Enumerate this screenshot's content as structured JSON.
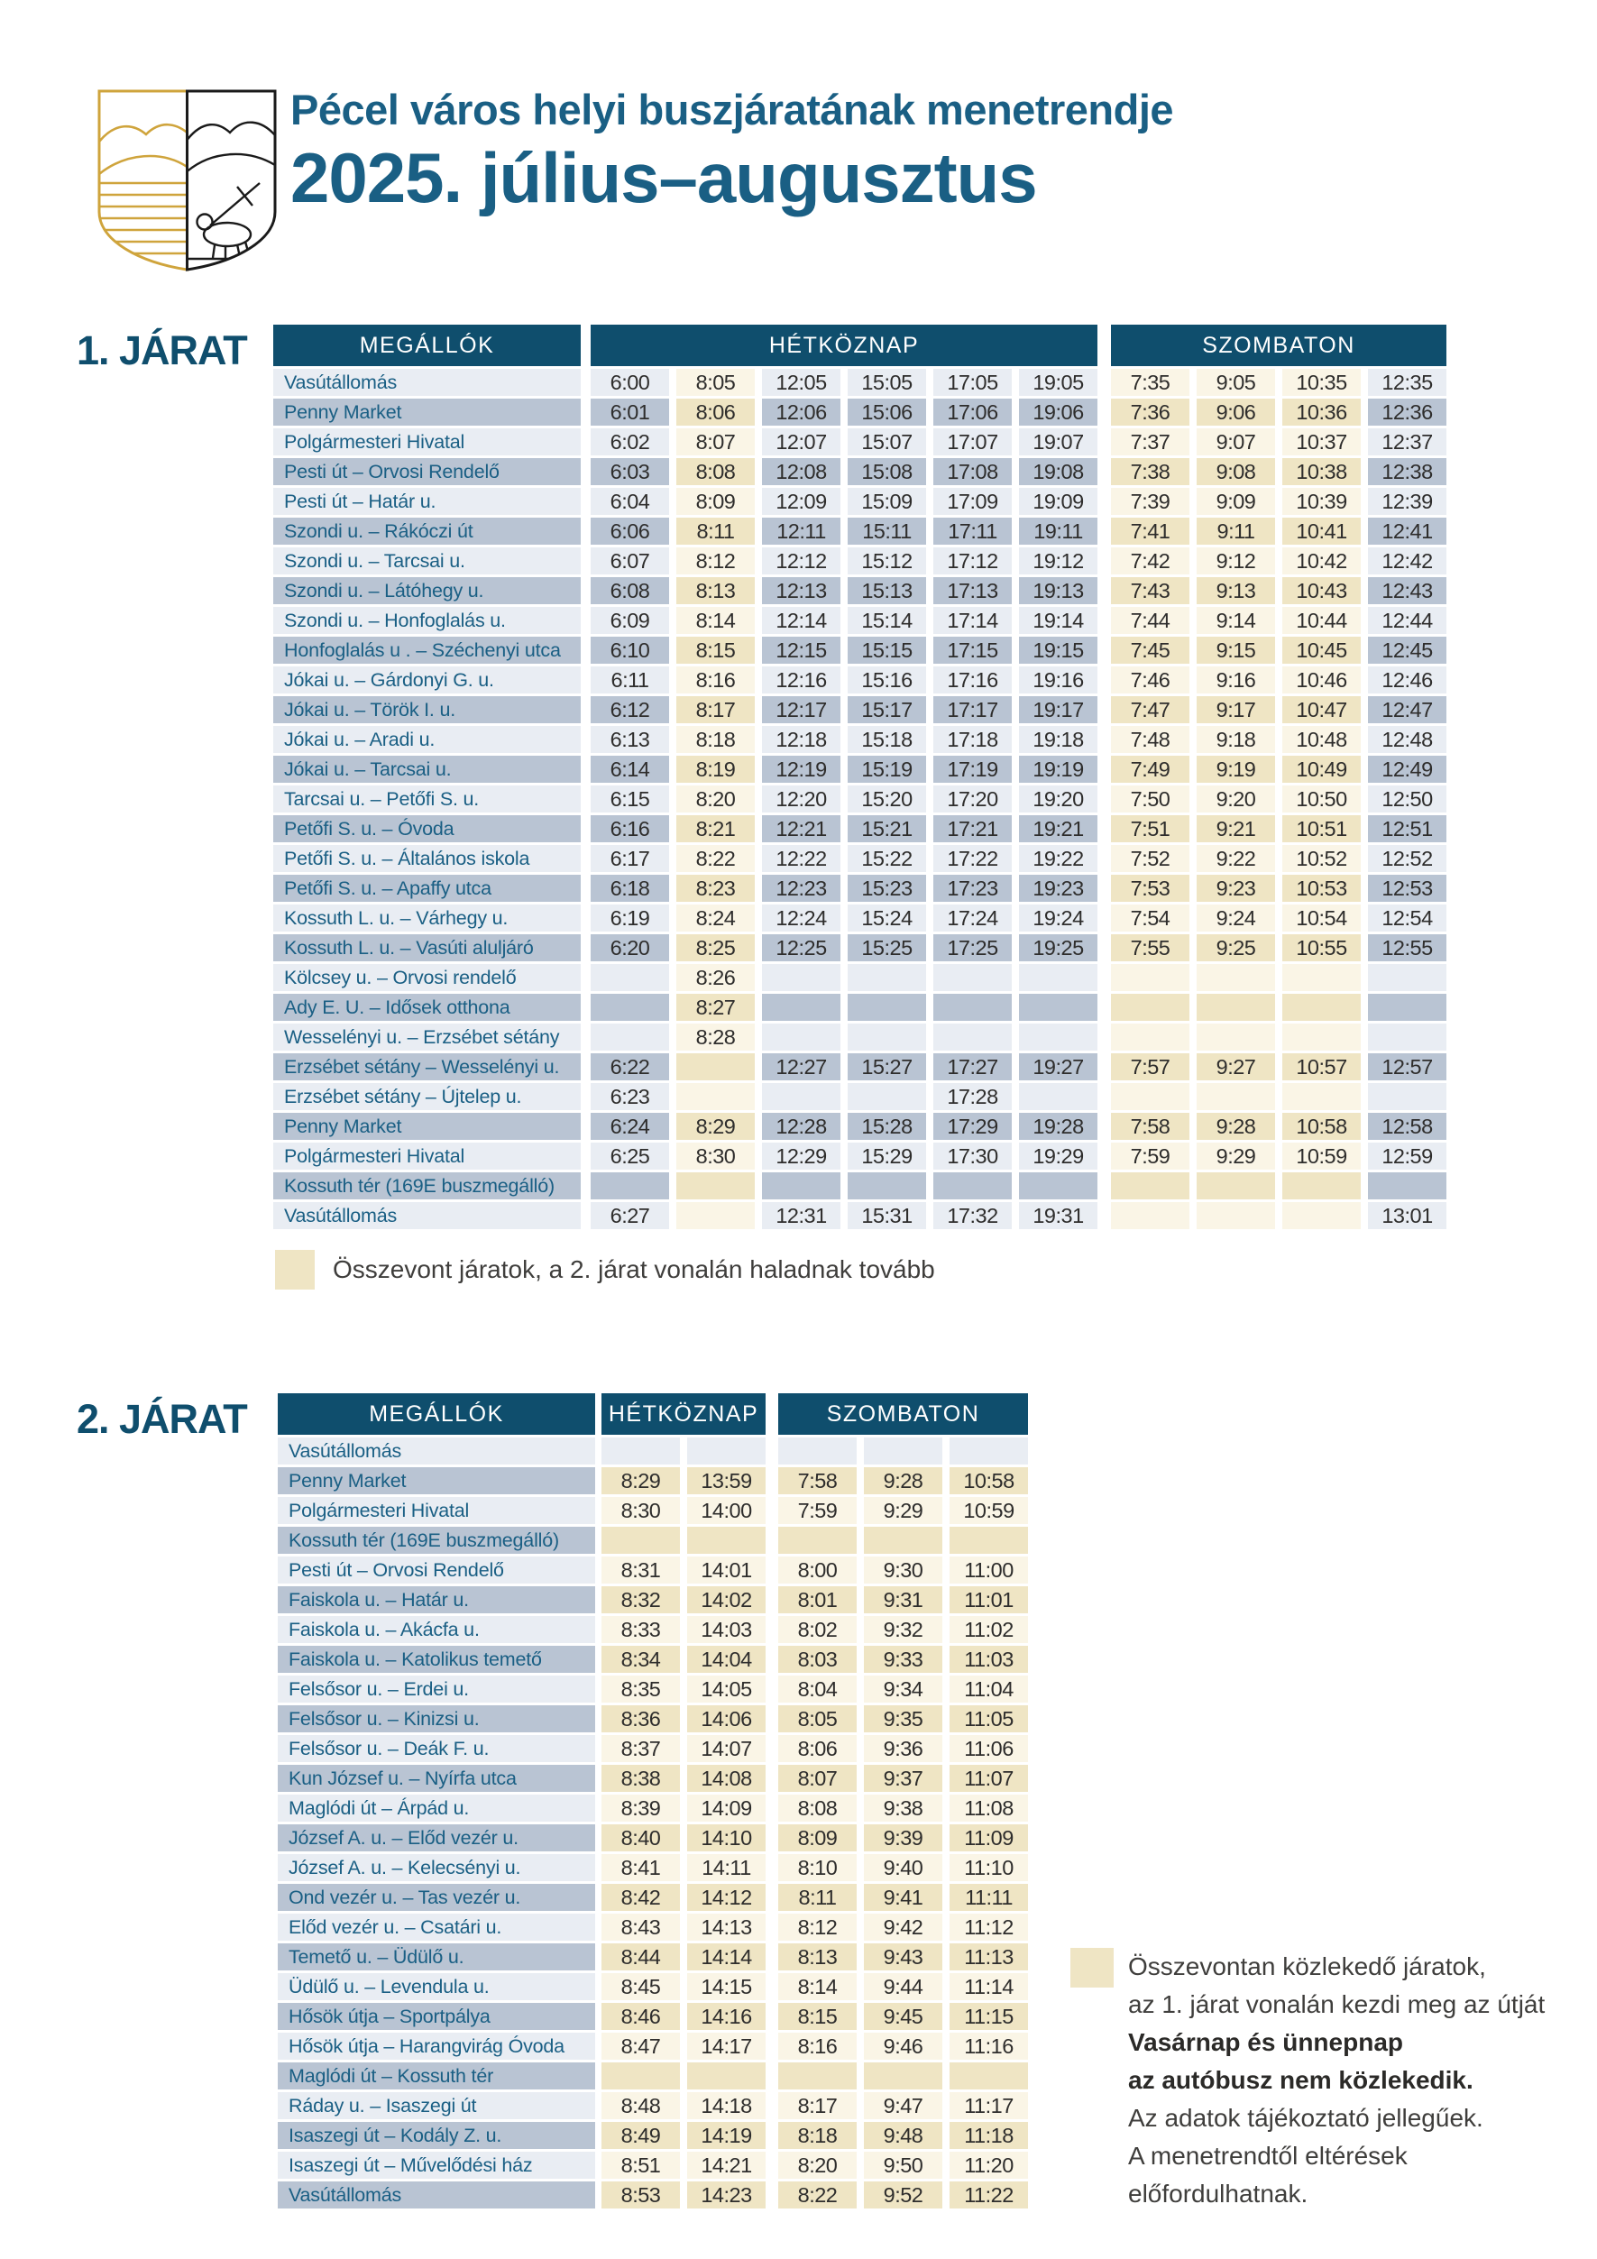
{
  "header": {
    "title_line1": "Pécel város helyi buszjáratának menetrendje",
    "title_line2": "2025. július–augusztus",
    "logo": "pecel-coat-of-arms"
  },
  "colors": {
    "header_blue": "#0f4e6d",
    "stop_text_blue": "#1a5f84",
    "row_light": "#e9edf3",
    "row_dark": "#b9c4d3",
    "combined_highlight_light": "#faf5e6",
    "combined_highlight_dark": "#efe5c4",
    "logo_gold": "#cfa43c",
    "logo_black": "#1a1a1a"
  },
  "table1": {
    "label": "1. JÁRAT",
    "headers": {
      "stops": "MEGÁLLÓK",
      "weekday": "HÉTKÖZNAP",
      "saturday": "SZOMBATON"
    },
    "combined_weekday_columns": [
      1
    ],
    "combined_saturday_columns": [
      0,
      1,
      2
    ],
    "non_combined_rows": [],
    "rows": [
      {
        "stop": "Vasútállomás",
        "weekday": [
          "6:00",
          "8:05",
          "12:05",
          "15:05",
          "17:05",
          "19:05"
        ],
        "saturday": [
          "7:35",
          "9:05",
          "10:35",
          "12:35"
        ]
      },
      {
        "stop": "Penny Market",
        "weekday": [
          "6:01",
          "8:06",
          "12:06",
          "15:06",
          "17:06",
          "19:06"
        ],
        "saturday": [
          "7:36",
          "9:06",
          "10:36",
          "12:36"
        ]
      },
      {
        "stop": "Polgármesteri Hivatal",
        "weekday": [
          "6:02",
          "8:07",
          "12:07",
          "15:07",
          "17:07",
          "19:07"
        ],
        "saturday": [
          "7:37",
          "9:07",
          "10:37",
          "12:37"
        ]
      },
      {
        "stop": "Pesti út – Orvosi Rendelő",
        "weekday": [
          "6:03",
          "8:08",
          "12:08",
          "15:08",
          "17:08",
          "19:08"
        ],
        "saturday": [
          "7:38",
          "9:08",
          "10:38",
          "12:38"
        ]
      },
      {
        "stop": "Pesti út – Határ u.",
        "weekday": [
          "6:04",
          "8:09",
          "12:09",
          "15:09",
          "17:09",
          "19:09"
        ],
        "saturday": [
          "7:39",
          "9:09",
          "10:39",
          "12:39"
        ]
      },
      {
        "stop": "Szondi u. – Rákóczi út",
        "weekday": [
          "6:06",
          "8:11",
          "12:11",
          "15:11",
          "17:11",
          "19:11"
        ],
        "saturday": [
          "7:41",
          "9:11",
          "10:41",
          "12:41"
        ]
      },
      {
        "stop": "Szondi u. – Tarcsai u.",
        "weekday": [
          "6:07",
          "8:12",
          "12:12",
          "15:12",
          "17:12",
          "19:12"
        ],
        "saturday": [
          "7:42",
          "9:12",
          "10:42",
          "12:42"
        ]
      },
      {
        "stop": "Szondi u. – Látóhegy u.",
        "weekday": [
          "6:08",
          "8:13",
          "12:13",
          "15:13",
          "17:13",
          "19:13"
        ],
        "saturday": [
          "7:43",
          "9:13",
          "10:43",
          "12:43"
        ]
      },
      {
        "stop": "Szondi u. – Honfoglalás u.",
        "weekday": [
          "6:09",
          "8:14",
          "12:14",
          "15:14",
          "17:14",
          "19:14"
        ],
        "saturday": [
          "7:44",
          "9:14",
          "10:44",
          "12:44"
        ]
      },
      {
        "stop": "Honfoglalás u . – Széchenyi utca",
        "weekday": [
          "6:10",
          "8:15",
          "12:15",
          "15:15",
          "17:15",
          "19:15"
        ],
        "saturday": [
          "7:45",
          "9:15",
          "10:45",
          "12:45"
        ]
      },
      {
        "stop": "Jókai u. – Gárdonyi G. u.",
        "weekday": [
          "6:11",
          "8:16",
          "12:16",
          "15:16",
          "17:16",
          "19:16"
        ],
        "saturday": [
          "7:46",
          "9:16",
          "10:46",
          "12:46"
        ]
      },
      {
        "stop": "Jókai u. – Török I. u.",
        "weekday": [
          "6:12",
          "8:17",
          "12:17",
          "15:17",
          "17:17",
          "19:17"
        ],
        "saturday": [
          "7:47",
          "9:17",
          "10:47",
          "12:47"
        ]
      },
      {
        "stop": "Jókai u. – Aradi u.",
        "weekday": [
          "6:13",
          "8:18",
          "12:18",
          "15:18",
          "17:18",
          "19:18"
        ],
        "saturday": [
          "7:48",
          "9:18",
          "10:48",
          "12:48"
        ]
      },
      {
        "stop": "Jókai u. – Tarcsai u.",
        "weekday": [
          "6:14",
          "8:19",
          "12:19",
          "15:19",
          "17:19",
          "19:19"
        ],
        "saturday": [
          "7:49",
          "9:19",
          "10:49",
          "12:49"
        ]
      },
      {
        "stop": "Tarcsai u. – Petőfi S. u.",
        "weekday": [
          "6:15",
          "8:20",
          "12:20",
          "15:20",
          "17:20",
          "19:20"
        ],
        "saturday": [
          "7:50",
          "9:20",
          "10:50",
          "12:50"
        ]
      },
      {
        "stop": "Petőfi S. u. – Óvoda",
        "weekday": [
          "6:16",
          "8:21",
          "12:21",
          "15:21",
          "17:21",
          "19:21"
        ],
        "saturday": [
          "7:51",
          "9:21",
          "10:51",
          "12:51"
        ]
      },
      {
        "stop": "Petőfi S. u. – Általános iskola",
        "weekday": [
          "6:17",
          "8:22",
          "12:22",
          "15:22",
          "17:22",
          "19:22"
        ],
        "saturday": [
          "7:52",
          "9:22",
          "10:52",
          "12:52"
        ]
      },
      {
        "stop": "Petőfi S. u. – Apaffy utca",
        "weekday": [
          "6:18",
          "8:23",
          "12:23",
          "15:23",
          "17:23",
          "19:23"
        ],
        "saturday": [
          "7:53",
          "9:23",
          "10:53",
          "12:53"
        ]
      },
      {
        "stop": "Kossuth L. u. – Várhegy u.",
        "weekday": [
          "6:19",
          "8:24",
          "12:24",
          "15:24",
          "17:24",
          "19:24"
        ],
        "saturday": [
          "7:54",
          "9:24",
          "10:54",
          "12:54"
        ]
      },
      {
        "stop": "Kossuth L. u. – Vasúti aluljáró",
        "weekday": [
          "6:20",
          "8:25",
          "12:25",
          "15:25",
          "17:25",
          "19:25"
        ],
        "saturday": [
          "7:55",
          "9:25",
          "10:55",
          "12:55"
        ]
      },
      {
        "stop": "Kölcsey u. – Orvosi rendelő",
        "weekday": [
          "",
          "8:26",
          "",
          "",
          "",
          ""
        ],
        "saturday": [
          "",
          "",
          "",
          ""
        ]
      },
      {
        "stop": "Ady E. U. – Idősek otthona",
        "weekday": [
          "",
          "8:27",
          "",
          "",
          "",
          ""
        ],
        "saturday": [
          "",
          "",
          "",
          ""
        ]
      },
      {
        "stop": "Wesselényi u. – Erzsébet sétány",
        "weekday": [
          "",
          "8:28",
          "",
          "",
          "",
          ""
        ],
        "saturday": [
          "",
          "",
          "",
          ""
        ]
      },
      {
        "stop": "Erzsébet sétány – Wesselényi u.",
        "weekday": [
          "6:22",
          "",
          "12:27",
          "15:27",
          "17:27",
          "19:27"
        ],
        "saturday": [
          "7:57",
          "9:27",
          "10:57",
          "12:57"
        ]
      },
      {
        "stop": "Erzsébet sétány – Újtelep u.",
        "weekday": [
          "6:23",
          "",
          "",
          "",
          "17:28",
          ""
        ],
        "saturday": [
          "",
          "",
          "",
          ""
        ]
      },
      {
        "stop": "Penny Market",
        "weekday": [
          "6:24",
          "8:29",
          "12:28",
          "15:28",
          "17:29",
          "19:28"
        ],
        "saturday": [
          "7:58",
          "9:28",
          "10:58",
          "12:58"
        ]
      },
      {
        "stop": "Polgármesteri Hivatal",
        "weekday": [
          "6:25",
          "8:30",
          "12:29",
          "15:29",
          "17:30",
          "19:29"
        ],
        "saturday": [
          "7:59",
          "9:29",
          "10:59",
          "12:59"
        ]
      },
      {
        "stop": "Kossuth tér (169E buszmegálló)",
        "weekday": [
          "",
          "",
          "",
          "",
          "",
          ""
        ],
        "saturday": [
          "",
          "",
          "",
          ""
        ]
      },
      {
        "stop": "Vasútállomás",
        "weekday": [
          "6:27",
          "",
          "12:31",
          "15:31",
          "17:32",
          "19:31"
        ],
        "saturday": [
          "",
          "",
          "",
          "13:01"
        ]
      }
    ],
    "legend": {
      "text": "Összevont járatok, a 2. járat vonalán haladnak tovább"
    }
  },
  "table2": {
    "label": "2. JÁRAT",
    "headers": {
      "stops": "MEGÁLLÓK",
      "weekday": "HÉTKÖZNAP",
      "saturday": "SZOMBATON"
    },
    "combined_weekday_columns": [
      0,
      1
    ],
    "combined_saturday_columns": [
      0,
      1,
      2
    ],
    "non_combined_rows": [
      0
    ],
    "rows": [
      {
        "stop": "Vasútállomás",
        "weekday": [
          "",
          ""
        ],
        "saturday": [
          "",
          "",
          ""
        ]
      },
      {
        "stop": "Penny Market",
        "weekday": [
          "8:29",
          "13:59"
        ],
        "saturday": [
          "7:58",
          "9:28",
          "10:58"
        ]
      },
      {
        "stop": "Polgármesteri Hivatal",
        "weekday": [
          "8:30",
          "14:00"
        ],
        "saturday": [
          "7:59",
          "9:29",
          "10:59"
        ]
      },
      {
        "stop": "Kossuth tér (169E buszmegálló)",
        "weekday": [
          "",
          ""
        ],
        "saturday": [
          "",
          "",
          ""
        ]
      },
      {
        "stop": "Pesti út – Orvosi Rendelő",
        "weekday": [
          "8:31",
          "14:01"
        ],
        "saturday": [
          "8:00",
          "9:30",
          "11:00"
        ]
      },
      {
        "stop": "Faiskola u. – Határ u.",
        "weekday": [
          "8:32",
          "14:02"
        ],
        "saturday": [
          "8:01",
          "9:31",
          "11:01"
        ]
      },
      {
        "stop": "Faiskola u. – Akácfa u.",
        "weekday": [
          "8:33",
          "14:03"
        ],
        "saturday": [
          "8:02",
          "9:32",
          "11:02"
        ]
      },
      {
        "stop": "Faiskola u. – Katolikus temető",
        "weekday": [
          "8:34",
          "14:04"
        ],
        "saturday": [
          "8:03",
          "9:33",
          "11:03"
        ]
      },
      {
        "stop": "Felsősor u. – Erdei u.",
        "weekday": [
          "8:35",
          "14:05"
        ],
        "saturday": [
          "8:04",
          "9:34",
          "11:04"
        ]
      },
      {
        "stop": "Felsősor u. – Kinizsi u.",
        "weekday": [
          "8:36",
          "14:06"
        ],
        "saturday": [
          "8:05",
          "9:35",
          "11:05"
        ]
      },
      {
        "stop": "Felsősor u. – Deák F. u.",
        "weekday": [
          "8:37",
          "14:07"
        ],
        "saturday": [
          "8:06",
          "9:36",
          "11:06"
        ]
      },
      {
        "stop": "Kun József u. – Nyírfa utca",
        "weekday": [
          "8:38",
          "14:08"
        ],
        "saturday": [
          "8:07",
          "9:37",
          "11:07"
        ]
      },
      {
        "stop": "Maglódi út – Árpád u.",
        "weekday": [
          "8:39",
          "14:09"
        ],
        "saturday": [
          "8:08",
          "9:38",
          "11:08"
        ]
      },
      {
        "stop": "József A. u. – Előd vezér u.",
        "weekday": [
          "8:40",
          "14:10"
        ],
        "saturday": [
          "8:09",
          "9:39",
          "11:09"
        ]
      },
      {
        "stop": "József A. u. – Kelecsényi u.",
        "weekday": [
          "8:41",
          "14:11"
        ],
        "saturday": [
          "8:10",
          "9:40",
          "11:10"
        ]
      },
      {
        "stop": "Ond vezér u. – Tas vezér u.",
        "weekday": [
          "8:42",
          "14:12"
        ],
        "saturday": [
          "8:11",
          "9:41",
          "11:11"
        ]
      },
      {
        "stop": "Előd vezér u. – Csatári u.",
        "weekday": [
          "8:43",
          "14:13"
        ],
        "saturday": [
          "8:12",
          "9:42",
          "11:12"
        ]
      },
      {
        "stop": "Temető u. – Üdülő u.",
        "weekday": [
          "8:44",
          "14:14"
        ],
        "saturday": [
          "8:13",
          "9:43",
          "11:13"
        ]
      },
      {
        "stop": "Üdülő u. – Levendula u.",
        "weekday": [
          "8:45",
          "14:15"
        ],
        "saturday": [
          "8:14",
          "9:44",
          "11:14"
        ]
      },
      {
        "stop": "Hősök útja – Sportpálya",
        "weekday": [
          "8:46",
          "14:16"
        ],
        "saturday": [
          "8:15",
          "9:45",
          "11:15"
        ]
      },
      {
        "stop": "Hősök útja – Harangvirág Óvoda",
        "weekday": [
          "8:47",
          "14:17"
        ],
        "saturday": [
          "8:16",
          "9:46",
          "11:16"
        ]
      },
      {
        "stop": "Maglódi út – Kossuth tér",
        "weekday": [
          "",
          ""
        ],
        "saturday": [
          "",
          "",
          ""
        ]
      },
      {
        "stop": "Ráday u. – Isaszegi út",
        "weekday": [
          "8:48",
          "14:18"
        ],
        "saturday": [
          "8:17",
          "9:47",
          "11:17"
        ]
      },
      {
        "stop": "Isaszegi út – Kodály Z. u.",
        "weekday": [
          "8:49",
          "14:19"
        ],
        "saturday": [
          "8:18",
          "9:48",
          "11:18"
        ]
      },
      {
        "stop": "Isaszegi út – Művelődési ház",
        "weekday": [
          "8:51",
          "14:21"
        ],
        "saturday": [
          "8:20",
          "9:50",
          "11:20"
        ]
      },
      {
        "stop": "Vasútállomás",
        "weekday": [
          "8:53",
          "14:23"
        ],
        "saturday": [
          "8:22",
          "9:52",
          "11:22"
        ]
      }
    ]
  },
  "notes": {
    "lines": [
      {
        "text": "Összevontan közlekedő járatok,",
        "bold": false
      },
      {
        "text": "az 1. járat vonalán kezdi meg az útját",
        "bold": false
      },
      {
        "text": "Vasárnap és ünnepnap",
        "bold": true
      },
      {
        "text": "az autóbusz nem közlekedik.",
        "bold": true
      },
      {
        "text": "Az adatok tájékoztató jellegűek.",
        "bold": false
      },
      {
        "text": "A menetrendtől eltérések",
        "bold": false
      },
      {
        "text": "előfordulhatnak.",
        "bold": false
      }
    ]
  }
}
